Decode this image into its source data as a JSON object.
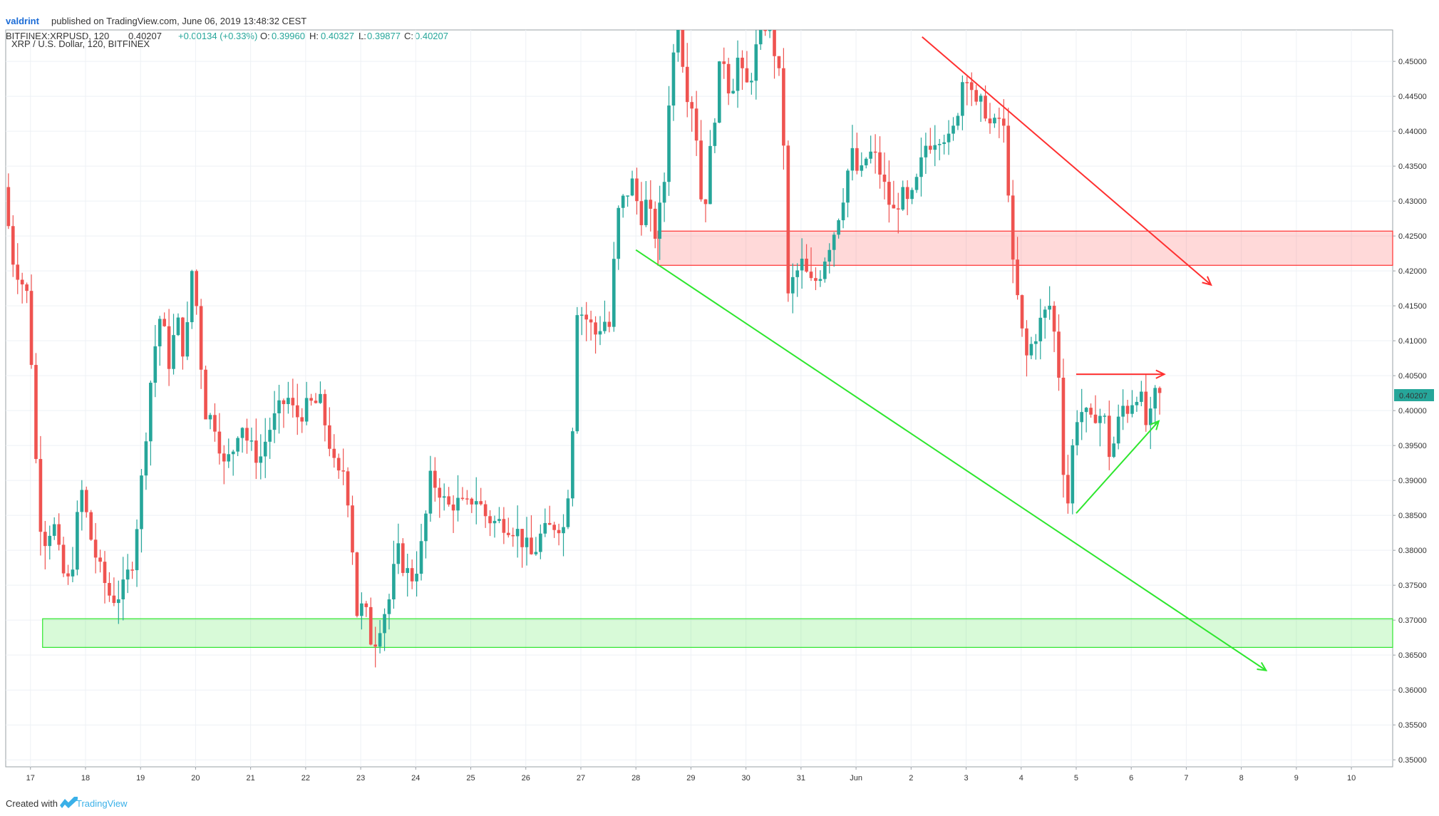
{
  "header": {
    "author": "valdrint",
    "published_text": "published on TradingView.com, June 06, 2019 13:48:32 CEST",
    "ticker": "BITFINEX:XRPUSD, 120",
    "last": "0.40207",
    "change": "+0.00134 (+0.33%)",
    "o_label": "O:",
    "o_value": "0.39960",
    "h_label": "H:",
    "h_value": "0.40327",
    "l_label": "L:",
    "l_value": "0.39877",
    "c_label": "C:",
    "c_value": "0.40207"
  },
  "legend": {
    "symbol_title": "XRP / U.S. Dollar, 120, BITFINEX"
  },
  "footer": {
    "created_with": "Created with",
    "brand": "TradingView"
  },
  "price_tag": "0.40207",
  "colors": {
    "up": "#26a69a",
    "down": "#ef5350",
    "support": "#2ee62e",
    "resistance": "#ff3030",
    "grid": "#eef1f5"
  },
  "chart_data": {
    "type": "candlestick",
    "title": "XRP / U.S. Dollar, 120, BITFINEX",
    "interval": "120",
    "x_ticks": [
      "17",
      "18",
      "19",
      "20",
      "21",
      "22",
      "23",
      "24",
      "25",
      "26",
      "27",
      "28",
      "29",
      "30",
      "31",
      "Jun",
      "2",
      "3",
      "4",
      "5",
      "6",
      "7",
      "8",
      "9",
      "10"
    ],
    "y_ticks": [
      0.35,
      0.355,
      0.36,
      0.365,
      0.37,
      0.375,
      0.38,
      0.385,
      0.39,
      0.395,
      0.4,
      0.405,
      0.41,
      0.415,
      0.42,
      0.425,
      0.43,
      0.435,
      0.44,
      0.445,
      0.45
    ],
    "ylim": [
      0.349,
      0.4545
    ],
    "xlim_days": [
      16.55,
      41.75
    ],
    "price_anchors": [
      [
        16.55,
        0.414
      ],
      [
        16.6,
        0.432
      ],
      [
        16.75,
        0.422
      ],
      [
        16.95,
        0.418
      ],
      [
        17.05,
        0.416
      ],
      [
        17.2,
        0.39
      ],
      [
        17.3,
        0.381
      ],
      [
        17.5,
        0.384
      ],
      [
        17.65,
        0.377
      ],
      [
        17.8,
        0.375
      ],
      [
        18.0,
        0.389
      ],
      [
        18.2,
        0.381
      ],
      [
        18.35,
        0.377
      ],
      [
        18.55,
        0.373
      ],
      [
        18.75,
        0.374
      ],
      [
        18.95,
        0.379
      ],
      [
        19.1,
        0.39
      ],
      [
        19.3,
        0.407
      ],
      [
        19.45,
        0.414
      ],
      [
        19.6,
        0.407
      ],
      [
        19.75,
        0.413
      ],
      [
        19.9,
        0.407
      ],
      [
        20.0,
        0.421
      ],
      [
        20.1,
        0.415
      ],
      [
        20.25,
        0.4
      ],
      [
        20.45,
        0.398
      ],
      [
        20.6,
        0.392
      ],
      [
        20.75,
        0.394
      ],
      [
        20.9,
        0.399
      ],
      [
        21.05,
        0.395
      ],
      [
        21.25,
        0.393
      ],
      [
        21.4,
        0.397
      ],
      [
        21.6,
        0.4
      ],
      [
        21.75,
        0.402
      ],
      [
        21.9,
        0.399
      ],
      [
        22.05,
        0.4
      ],
      [
        22.2,
        0.401
      ],
      [
        22.35,
        0.401
      ],
      [
        22.5,
        0.396
      ],
      [
        22.65,
        0.39
      ],
      [
        22.8,
        0.392
      ],
      [
        22.95,
        0.379
      ],
      [
        23.0,
        0.371
      ],
      [
        23.15,
        0.372
      ],
      [
        23.3,
        0.366
      ],
      [
        23.45,
        0.37
      ],
      [
        23.6,
        0.373
      ],
      [
        23.75,
        0.38
      ],
      [
        23.9,
        0.377
      ],
      [
        24.05,
        0.376
      ],
      [
        24.2,
        0.381
      ],
      [
        24.35,
        0.39
      ],
      [
        24.5,
        0.389
      ],
      [
        24.65,
        0.386
      ],
      [
        24.8,
        0.387
      ],
      [
        25.0,
        0.386
      ],
      [
        25.15,
        0.388
      ],
      [
        25.35,
        0.385
      ],
      [
        25.5,
        0.384
      ],
      [
        25.7,
        0.384
      ],
      [
        25.9,
        0.383
      ],
      [
        26.05,
        0.381
      ],
      [
        26.2,
        0.379
      ],
      [
        26.35,
        0.382
      ],
      [
        26.5,
        0.383
      ],
      [
        26.65,
        0.384
      ],
      [
        26.8,
        0.383
      ],
      [
        26.95,
        0.4
      ],
      [
        27.0,
        0.415
      ],
      [
        27.2,
        0.413
      ],
      [
        27.35,
        0.411
      ],
      [
        27.5,
        0.413
      ],
      [
        27.6,
        0.412
      ],
      [
        27.75,
        0.428
      ],
      [
        27.9,
        0.431
      ],
      [
        28.05,
        0.433
      ],
      [
        28.15,
        0.427
      ],
      [
        28.25,
        0.43
      ],
      [
        28.45,
        0.425
      ],
      [
        28.6,
        0.433
      ],
      [
        28.7,
        0.447
      ],
      [
        28.85,
        0.456
      ],
      [
        29.0,
        0.446
      ],
      [
        29.15,
        0.443
      ],
      [
        29.3,
        0.427
      ],
      [
        29.45,
        0.438
      ],
      [
        29.65,
        0.452
      ],
      [
        29.8,
        0.445
      ],
      [
        29.95,
        0.451
      ],
      [
        30.05,
        0.446
      ],
      [
        30.15,
        0.447
      ],
      [
        30.3,
        0.453
      ],
      [
        30.45,
        0.456
      ],
      [
        30.65,
        0.45
      ],
      [
        30.75,
        0.443
      ],
      [
        30.85,
        0.416
      ],
      [
        30.95,
        0.419
      ],
      [
        31.1,
        0.421
      ],
      [
        31.25,
        0.418
      ],
      [
        31.4,
        0.419
      ],
      [
        31.55,
        0.423
      ],
      [
        31.7,
        0.426
      ],
      [
        31.85,
        0.431
      ],
      [
        32.0,
        0.437
      ],
      [
        32.15,
        0.433
      ],
      [
        32.3,
        0.437
      ],
      [
        32.45,
        0.436
      ],
      [
        32.6,
        0.432
      ],
      [
        32.75,
        0.428
      ],
      [
        32.9,
        0.431
      ],
      [
        33.05,
        0.429
      ],
      [
        33.2,
        0.433
      ],
      [
        33.35,
        0.438
      ],
      [
        33.5,
        0.439
      ],
      [
        33.65,
        0.44
      ],
      [
        33.8,
        0.438
      ],
      [
        33.95,
        0.444
      ],
      [
        34.05,
        0.449
      ],
      [
        34.15,
        0.448
      ],
      [
        34.25,
        0.443
      ],
      [
        34.4,
        0.444
      ],
      [
        34.55,
        0.44
      ],
      [
        34.7,
        0.442
      ],
      [
        34.8,
        0.439
      ],
      [
        34.95,
        0.418
      ],
      [
        35.05,
        0.415
      ],
      [
        35.15,
        0.407
      ],
      [
        35.3,
        0.41
      ],
      [
        35.45,
        0.413
      ],
      [
        35.6,
        0.415
      ],
      [
        35.75,
        0.408
      ],
      [
        35.85,
        0.392
      ],
      [
        35.95,
        0.386
      ],
      [
        36.05,
        0.399
      ],
      [
        36.2,
        0.4
      ],
      [
        36.35,
        0.398
      ],
      [
        36.45,
        0.4
      ],
      [
        36.55,
        0.399
      ],
      [
        36.65,
        0.398
      ],
      [
        36.7,
        0.392
      ],
      [
        36.8,
        0.397
      ],
      [
        36.95,
        0.401
      ],
      [
        37.05,
        0.4
      ],
      [
        37.15,
        0.403
      ],
      [
        37.25,
        0.402
      ],
      [
        37.35,
        0.398
      ],
      [
        37.45,
        0.399
      ],
      [
        37.5,
        0.402
      ]
    ],
    "annotations": {
      "resistance_zone": {
        "low": 0.4208,
        "high": 0.4257,
        "x_start_day": 28.4
      },
      "support_zone": {
        "low": 0.3661,
        "high": 0.3702,
        "x_start_day": 17.22
      },
      "red_descending_line": {
        "from": [
          33.2,
          0.4535
        ],
        "to": [
          38.45,
          0.418
        ]
      },
      "green_descending_line": {
        "from": [
          28.0,
          0.423
        ],
        "to": [
          39.45,
          0.3628
        ]
      },
      "red_flat_line": {
        "from": [
          36.0,
          0.4052
        ],
        "to": [
          37.6,
          0.4052
        ]
      },
      "green_rising_line": {
        "from": [
          36.0,
          0.3853
        ],
        "to": [
          37.5,
          0.3985
        ]
      }
    }
  }
}
